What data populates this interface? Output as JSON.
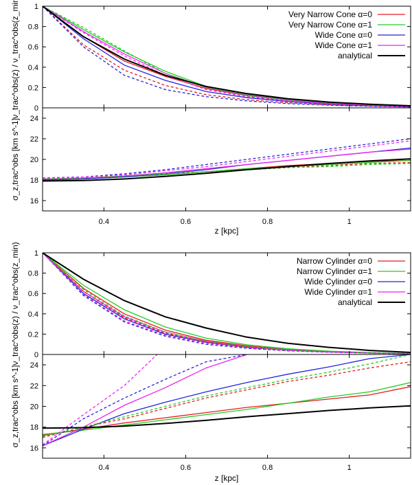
{
  "chart_data": [
    {
      "type": "line",
      "panel": "top",
      "xlabel": "z [kpc]",
      "xlim": [
        0.25,
        1.15
      ],
      "xticks": [
        0.4,
        0.6,
        0.8,
        1
      ],
      "xtick_labels": [
        "0.4",
        "0.6",
        "0.8",
        "1"
      ],
      "legend_position": "top-right",
      "colors": {
        "red": "#e41a1c",
        "green": "#22cc22",
        "blue": "#2222dd",
        "magenta": "#ee22ee",
        "black": "#000000"
      },
      "legend": [
        {
          "label": "Very Narrow Cone α=0",
          "color": "#e41a1c"
        },
        {
          "label": "Very Narrow Cone α=1",
          "color": "#22cc22"
        },
        {
          "label": "Wide Cone α=0",
          "color": "#2222dd"
        },
        {
          "label": "Wide Cone α=1",
          "color": "#ee22ee"
        },
        {
          "label": "analytical",
          "color": "#000000"
        }
      ],
      "subplots": [
        {
          "ylabel": "ν_trac^obs(z) / ν_trac^obs(z_min)",
          "ylim": [
            0,
            1
          ],
          "yticks": [
            0,
            0.2,
            0.4,
            0.6,
            0.8,
            1
          ],
          "ytick_labels": [
            "0",
            "0.2",
            "0.4",
            "0.6",
            "0.8",
            "1"
          ],
          "x": [
            0.25,
            0.35,
            0.45,
            0.55,
            0.65,
            0.75,
            0.85,
            0.95,
            1.05,
            1.15
          ],
          "series": [
            {
              "color": "#e41a1c",
              "dash": false,
              "values": [
                1.0,
                0.7,
                0.46,
                0.31,
                0.19,
                0.12,
                0.075,
                0.045,
                0.025,
                0.012
              ]
            },
            {
              "color": "#22cc22",
              "dash": false,
              "values": [
                1.0,
                0.77,
                0.55,
                0.36,
                0.21,
                0.13,
                0.08,
                0.048,
                0.027,
                0.013
              ]
            },
            {
              "color": "#2222dd",
              "dash": false,
              "values": [
                1.0,
                0.68,
                0.42,
                0.27,
                0.16,
                0.1,
                0.062,
                0.037,
                0.02,
                0.01
              ]
            },
            {
              "color": "#ee22ee",
              "dash": false,
              "values": [
                1.0,
                0.75,
                0.53,
                0.34,
                0.2,
                0.125,
                0.077,
                0.046,
                0.026,
                0.012
              ]
            },
            {
              "color": "#e41a1c",
              "dash": true,
              "values": [
                1.0,
                0.62,
                0.37,
                0.22,
                0.13,
                0.08,
                0.05,
                0.03,
                0.018,
                0.009
              ]
            },
            {
              "color": "#22cc22",
              "dash": true,
              "values": [
                1.0,
                0.79,
                0.56,
                0.34,
                0.2,
                0.12,
                0.074,
                0.044,
                0.025,
                0.012
              ]
            },
            {
              "color": "#2222dd",
              "dash": true,
              "values": [
                1.0,
                0.6,
                0.32,
                0.18,
                0.11,
                0.068,
                0.042,
                0.026,
                0.016,
                0.008
              ]
            },
            {
              "color": "#ee22ee",
              "dash": true,
              "values": [
                1.0,
                0.74,
                0.51,
                0.32,
                0.18,
                0.11,
                0.068,
                0.041,
                0.024,
                0.011
              ]
            },
            {
              "name": "analytical",
              "color": "#000000",
              "dash": false,
              "width": 2,
              "values": [
                1.0,
                0.7,
                0.48,
                0.32,
                0.21,
                0.14,
                0.09,
                0.057,
                0.035,
                0.02
              ]
            }
          ]
        },
        {
          "ylabel": "σ_z,trac^obs [km s^-1]",
          "ylim": [
            15,
            25
          ],
          "yticks": [
            16,
            18,
            20,
            22,
            24
          ],
          "ytick_labels": [
            "16",
            "18",
            "20",
            "22",
            "24"
          ],
          "x": [
            0.25,
            0.35,
            0.45,
            0.55,
            0.65,
            0.75,
            0.85,
            0.95,
            1.05,
            1.15
          ],
          "series": [
            {
              "color": "#e41a1c",
              "dash": false,
              "values": [
                18.0,
                18.1,
                18.3,
                18.5,
                18.8,
                19.1,
                19.4,
                19.6,
                19.8,
                19.9
              ]
            },
            {
              "color": "#22cc22",
              "dash": false,
              "values": [
                18.0,
                18.1,
                18.3,
                18.5,
                18.8,
                19.1,
                19.3,
                19.5,
                19.7,
                19.9
              ]
            },
            {
              "color": "#2222dd",
              "dash": false,
              "values": [
                18.0,
                18.1,
                18.3,
                18.6,
                19.0,
                19.5,
                19.9,
                20.3,
                20.7,
                21.1
              ]
            },
            {
              "color": "#ee22ee",
              "dash": false,
              "values": [
                18.1,
                18.2,
                18.4,
                18.7,
                19.1,
                19.5,
                19.9,
                20.3,
                20.7,
                21.0
              ]
            },
            {
              "color": "#e41a1c",
              "dash": true,
              "values": [
                18.1,
                18.2,
                18.4,
                18.6,
                18.8,
                19.0,
                19.2,
                19.4,
                19.6,
                19.7
              ]
            },
            {
              "color": "#22cc22",
              "dash": true,
              "values": [
                18.1,
                18.2,
                18.4,
                18.6,
                18.8,
                19.0,
                19.2,
                19.3,
                19.5,
                19.6
              ]
            },
            {
              "color": "#2222dd",
              "dash": true,
              "values": [
                18.2,
                18.3,
                18.6,
                19.0,
                19.5,
                20.0,
                20.5,
                21.0,
                21.5,
                22.0
              ]
            },
            {
              "color": "#ee22ee",
              "dash": true,
              "values": [
                18.2,
                18.3,
                18.5,
                18.9,
                19.3,
                19.8,
                20.3,
                20.8,
                21.3,
                21.8
              ]
            },
            {
              "name": "analytical",
              "color": "#000000",
              "dash": false,
              "width": 2,
              "values": [
                17.9,
                17.95,
                18.1,
                18.35,
                18.65,
                19.0,
                19.3,
                19.6,
                19.85,
                20.05
              ]
            }
          ]
        }
      ]
    },
    {
      "type": "line",
      "panel": "bottom",
      "xlabel": "z [kpc]",
      "xlim": [
        0.25,
        1.15
      ],
      "xticks": [
        0.4,
        0.6,
        0.8,
        1
      ],
      "xtick_labels": [
        "0.4",
        "0.6",
        "0.8",
        "1"
      ],
      "legend_position": "top-right",
      "colors": {
        "red": "#e41a1c",
        "green": "#22cc22",
        "blue": "#2222dd",
        "magenta": "#ee22ee",
        "black": "#000000"
      },
      "legend": [
        {
          "label": "Narrow Cylinder α=0",
          "color": "#e41a1c"
        },
        {
          "label": "Narrow Cylinder α=1",
          "color": "#22cc22"
        },
        {
          "label": "Wide Cylinder α=0",
          "color": "#2222dd"
        },
        {
          "label": "Wide Cylinder α=1",
          "color": "#ee22ee"
        },
        {
          "label": "analytical",
          "color": "#000000"
        }
      ],
      "subplots": [
        {
          "ylabel": "ν_trac^obs(z) / ν_trac^obs(z_min)",
          "ylim": [
            0,
            1
          ],
          "yticks": [
            0,
            0.2,
            0.4,
            0.6,
            0.8,
            1
          ],
          "ytick_labels": [
            "0",
            "0.2",
            "0.4",
            "0.6",
            "0.8",
            "1"
          ],
          "x": [
            0.25,
            0.35,
            0.45,
            0.55,
            0.65,
            0.75,
            0.85,
            0.95,
            1.05,
            1.15
          ],
          "series": [
            {
              "color": "#e41a1c",
              "dash": false,
              "values": [
                1.0,
                0.65,
                0.4,
                0.24,
                0.14,
                0.085,
                0.05,
                0.03,
                0.017,
                0.008
              ]
            },
            {
              "color": "#22cc22",
              "dash": false,
              "values": [
                1.0,
                0.68,
                0.44,
                0.27,
                0.16,
                0.095,
                0.056,
                0.033,
                0.019,
                0.009
              ]
            },
            {
              "color": "#2222dd",
              "dash": false,
              "values": [
                1.0,
                0.6,
                0.35,
                0.2,
                0.12,
                0.07,
                0.042,
                0.025,
                0.015,
                0.007
              ]
            },
            {
              "color": "#ee22ee",
              "dash": false,
              "values": [
                1.0,
                0.62,
                0.37,
                0.22,
                0.13,
                0.078,
                0.046,
                0.027,
                0.016,
                0.008
              ]
            },
            {
              "color": "#e41a1c",
              "dash": true,
              "values": [
                1.0,
                0.62,
                0.36,
                0.21,
                0.12,
                0.072,
                0.043,
                0.026,
                0.015,
                0.007
              ]
            },
            {
              "color": "#22cc22",
              "dash": true,
              "values": [
                1.0,
                0.64,
                0.38,
                0.22,
                0.13,
                0.077,
                0.045,
                0.027,
                0.016,
                0.008
              ]
            },
            {
              "color": "#2222dd",
              "dash": true,
              "values": [
                1.0,
                0.58,
                0.32,
                0.18,
                0.1,
                0.06,
                0.036,
                0.022,
                0.013,
                0.006
              ]
            },
            {
              "color": "#ee22ee",
              "dash": true,
              "values": [
                1.0,
                0.59,
                0.33,
                0.19,
                0.11,
                0.065,
                0.039,
                0.023,
                0.014,
                0.007
              ]
            },
            {
              "name": "analytical",
              "color": "#000000",
              "dash": false,
              "width": 2,
              "values": [
                1.0,
                0.74,
                0.53,
                0.37,
                0.26,
                0.17,
                0.11,
                0.07,
                0.04,
                0.02
              ]
            }
          ]
        },
        {
          "ylabel": "σ_z,trac^obs [km s^-1]",
          "ylim": [
            15,
            25
          ],
          "yticks": [
            16,
            18,
            20,
            22,
            24
          ],
          "ytick_labels": [
            "16",
            "18",
            "20",
            "22",
            "24"
          ],
          "x": [
            0.25,
            0.35,
            0.45,
            0.55,
            0.65,
            0.75,
            0.85,
            0.95,
            1.05,
            1.15
          ],
          "series": [
            {
              "color": "#e41a1c",
              "dash": false,
              "values": [
                17.2,
                17.8,
                18.4,
                18.9,
                19.4,
                19.9,
                20.3,
                20.7,
                21.1,
                21.9
              ]
            },
            {
              "color": "#22cc22",
              "dash": false,
              "values": [
                17.3,
                17.7,
                18.2,
                18.7,
                19.2,
                19.7,
                20.3,
                20.9,
                21.4,
                22.3
              ]
            },
            {
              "color": "#2222dd",
              "dash": false,
              "values": [
                16.2,
                17.8,
                19.3,
                20.4,
                21.4,
                22.3,
                23.1,
                23.8,
                24.6,
                25.0
              ]
            },
            {
              "color": "#ee22ee",
              "dash": false,
              "values": [
                16.2,
                18.0,
                20.1,
                21.8,
                23.7,
                25.0
              ]
            },
            {
              "color": "#e41a1c",
              "dash": true,
              "values": [
                17.0,
                18.0,
                18.8,
                19.8,
                20.8,
                21.6,
                22.4,
                23.0,
                23.7,
                24.3
              ]
            },
            {
              "color": "#22cc22",
              "dash": true,
              "values": [
                17.1,
                18.0,
                19.0,
                20.0,
                21.0,
                21.8,
                22.6,
                23.3,
                24.1,
                25.0
              ]
            },
            {
              "color": "#2222dd",
              "dash": true,
              "values": [
                16.2,
                18.8,
                20.8,
                22.6,
                24.3,
                25.0
              ]
            },
            {
              "x": [
                0.25,
                0.35,
                0.45,
                0.53
              ],
              "color": "#ee22ee",
              "dash": true,
              "values": [
                16.3,
                19.2,
                22.0,
                25.0
              ]
            },
            {
              "name": "analytical",
              "color": "#000000",
              "dash": false,
              "width": 2,
              "values": [
                17.9,
                17.95,
                18.1,
                18.35,
                18.65,
                19.0,
                19.3,
                19.6,
                19.85,
                20.05
              ]
            }
          ]
        }
      ]
    }
  ]
}
